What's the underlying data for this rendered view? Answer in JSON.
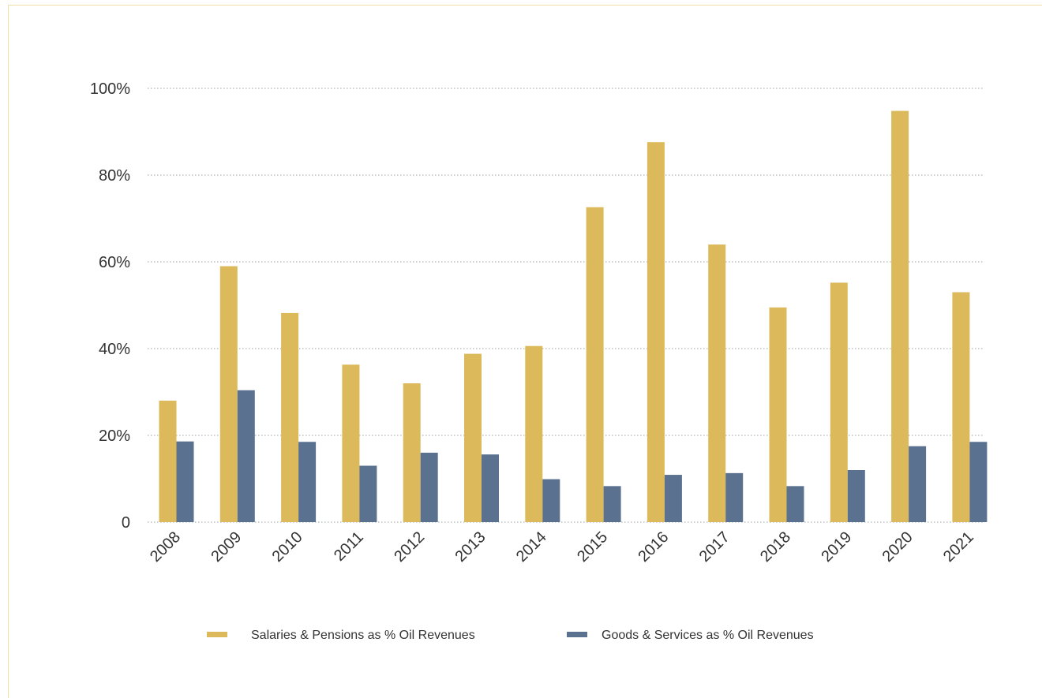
{
  "chart_data": {
    "type": "bar",
    "categories": [
      "2008",
      "2009",
      "2010",
      "2011",
      "2012",
      "2013",
      "2014",
      "2015",
      "2016",
      "2017",
      "2018",
      "2019",
      "2020",
      "2021"
    ],
    "series": [
      {
        "name": "Salaries & Pensions  as % Oil Revenues",
        "color": "#dcb95a",
        "values": [
          28.0,
          59.0,
          48.2,
          36.3,
          32.0,
          38.8,
          40.6,
          72.6,
          87.6,
          64.0,
          49.5,
          55.2,
          94.8,
          53.0
        ]
      },
      {
        "name": "Goods & Services as % Oil Revenues",
        "color": "#5b7190",
        "values": [
          18.6,
          30.4,
          18.5,
          13.0,
          16.0,
          15.6,
          9.9,
          8.3,
          10.9,
          11.3,
          8.3,
          12.0,
          17.5,
          18.5
        ]
      }
    ],
    "yticks": [
      {
        "value": 0,
        "label": "0"
      },
      {
        "value": 20,
        "label": "20%"
      },
      {
        "value": 40,
        "label": "40%"
      },
      {
        "value": 60,
        "label": "60%"
      },
      {
        "value": 80,
        "label": "80%"
      },
      {
        "value": 100,
        "label": "100%"
      }
    ],
    "ylim": [
      0,
      100
    ],
    "grid": true,
    "gridline_color": "#9aa0a6",
    "legend_position": "bottom",
    "title": "",
    "xlabel": "",
    "ylabel": ""
  }
}
